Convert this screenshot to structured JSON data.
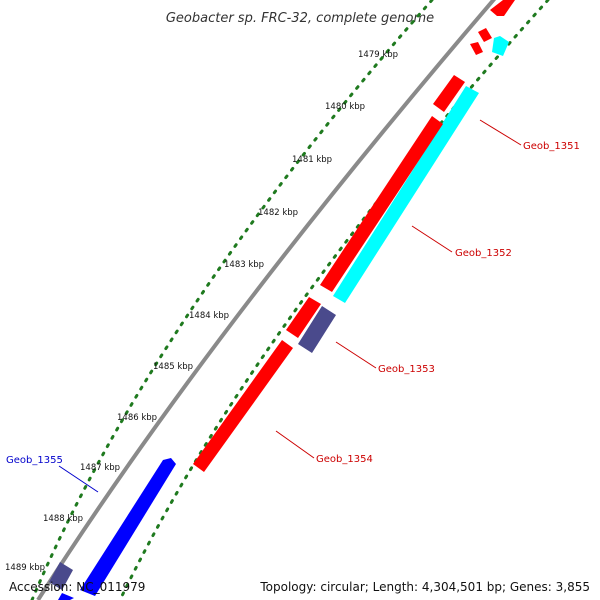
{
  "title": "Geobacter sp. FRC-32, complete genome",
  "footer": {
    "accession": "Accession: NC_011979",
    "summary": "Topology: circular; Length: 4,304,501 bp; Genes: 3,855"
  },
  "colors": {
    "backbone": "#8a8a8a",
    "tick_dots": "#1f7a1f",
    "red_gene": "#ff0000",
    "cyan_gene": "#00ffff",
    "blue_gene": "#0000ff",
    "navy_gene": "#4a4a8c",
    "red_label": "#cc0000",
    "blue_label": "#0000cc"
  },
  "kbp_ticks": [
    "1479 kbp",
    "1480 kbp",
    "1481 kbp",
    "1482 kbp",
    "1483 kbp",
    "1484 kbp",
    "1485 kbp",
    "1486 kbp",
    "1487 kbp",
    "1488 kbp",
    "1489 kbp"
  ],
  "gene_labels": [
    {
      "id": "Geob_1351",
      "color": "red"
    },
    {
      "id": "Geob_1352",
      "color": "red"
    },
    {
      "id": "Geob_1353",
      "color": "red"
    },
    {
      "id": "Geob_1354",
      "color": "red"
    },
    {
      "id": "Geob_1355",
      "color": "blue"
    }
  ]
}
